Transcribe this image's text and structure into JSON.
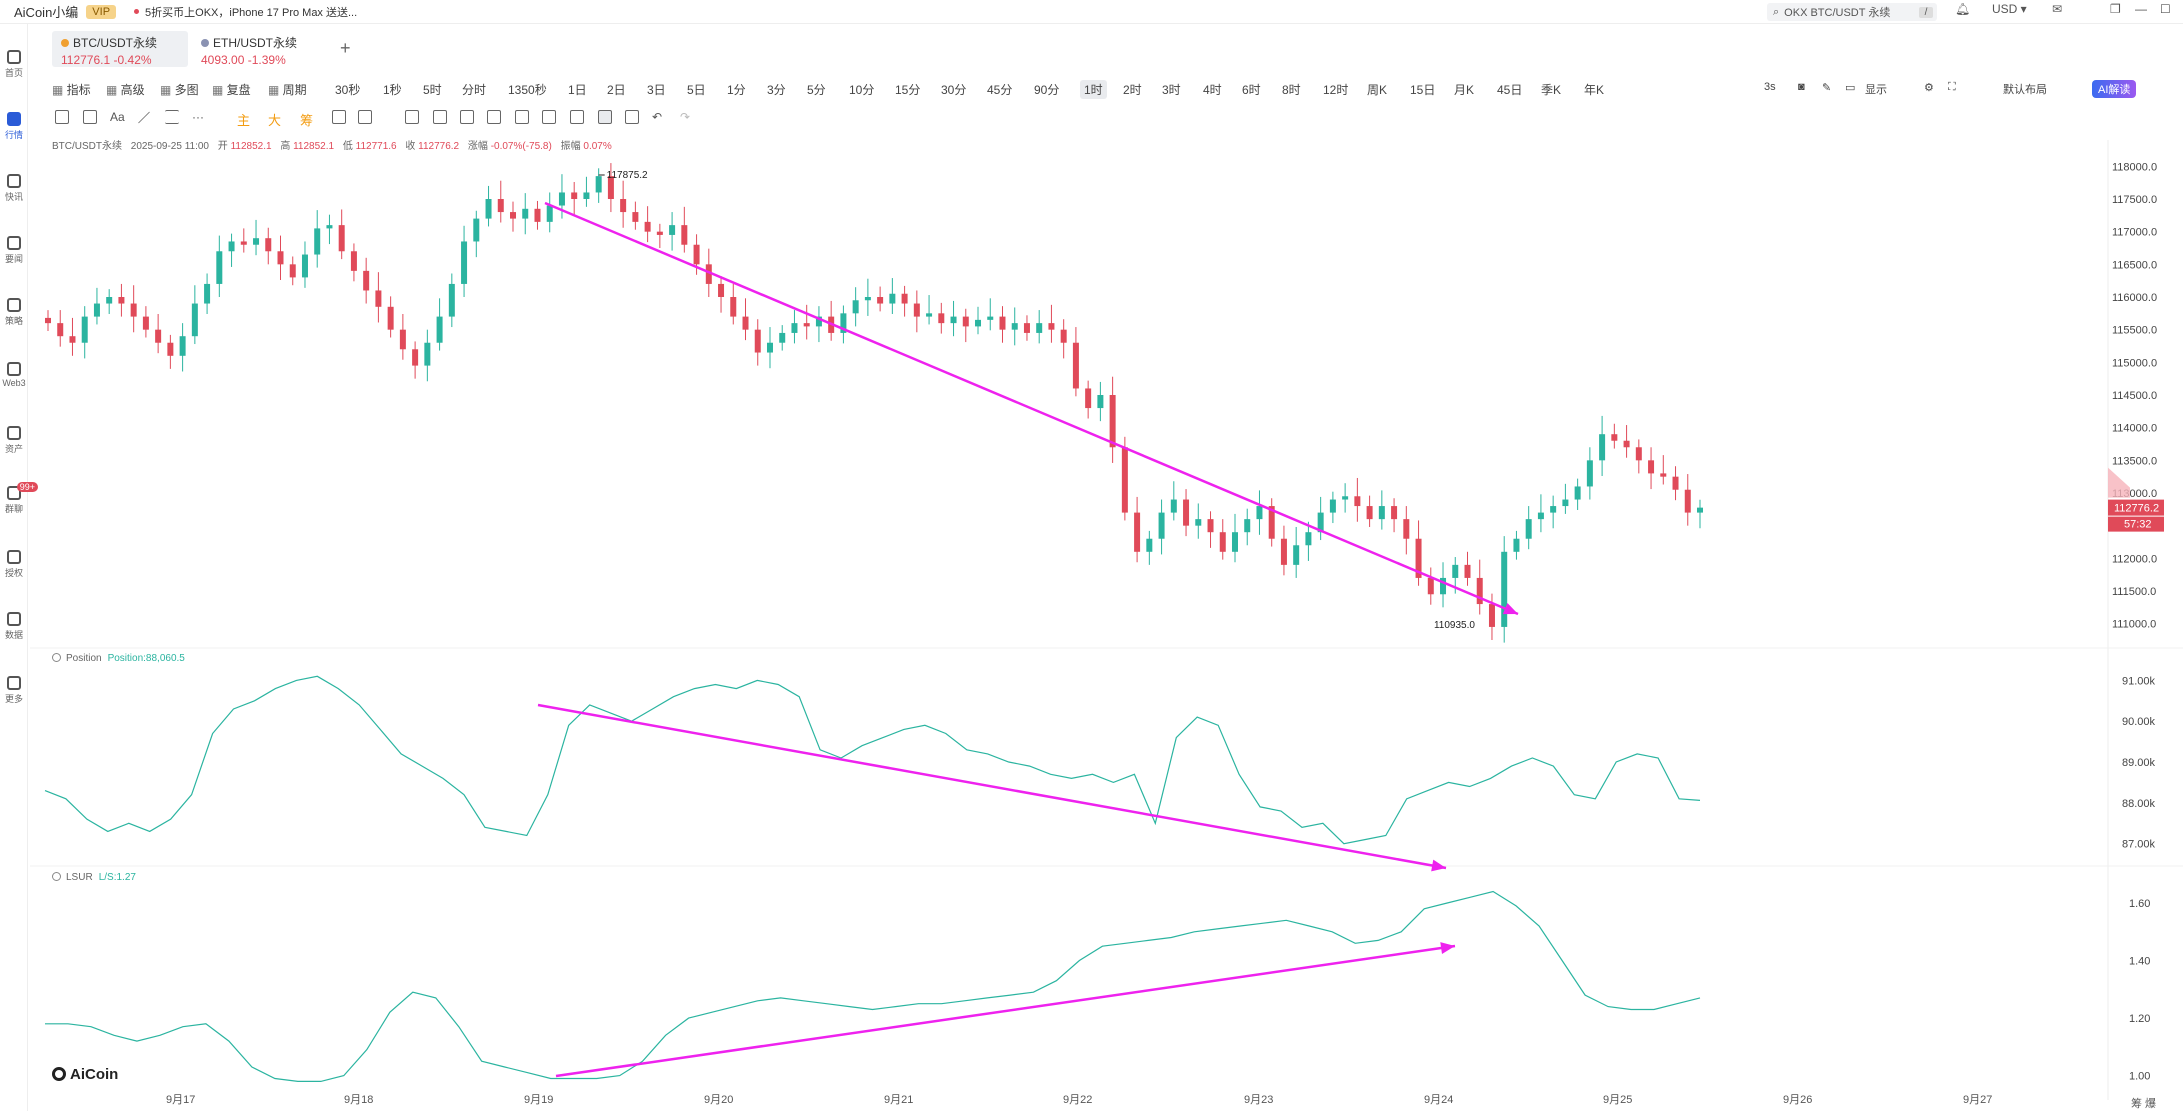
{
  "topbar": {
    "brand": "AiCoin小编",
    "vip": "VIP",
    "news": "5折买币上OKX，iPhone 17 Pro Max 送送...",
    "search_text": "OKX BTC/USDT 永续",
    "search_key": "/",
    "currency": "USD"
  },
  "sidebar": {
    "items": [
      {
        "label": "首页",
        "icon": "compass-icon"
      },
      {
        "label": "行情",
        "icon": "chart-bars-icon",
        "active": true
      },
      {
        "label": "快讯",
        "icon": "news-icon"
      },
      {
        "label": "要闻",
        "icon": "document-icon"
      },
      {
        "label": "策略",
        "icon": "robot-icon"
      },
      {
        "label": "Web3",
        "icon": "web3-icon"
      },
      {
        "label": "资产",
        "icon": "wallet-icon"
      },
      {
        "label": "群聊",
        "icon": "chat-icon",
        "badge": "99+"
      },
      {
        "label": "授权",
        "icon": "key-icon"
      },
      {
        "label": "数据",
        "icon": "monitor-icon"
      },
      {
        "label": "更多",
        "icon": "grid-icon"
      }
    ]
  },
  "tabs": [
    {
      "name": "BTC/USDT永续",
      "price": "112776.1",
      "change": "-0.42%",
      "active": true
    },
    {
      "name": "ETH/USDT永续",
      "price": "4093.00",
      "change": "-1.39%",
      "active": false
    }
  ],
  "toolbar": {
    "left": [
      "指标",
      "高级",
      "多图",
      "复盘",
      "周期"
    ],
    "intervals": [
      "30秒",
      "1秒",
      "5时",
      "分时",
      "1350秒",
      "1日",
      "2日",
      "3日",
      "5日",
      "1分",
      "3分",
      "5分",
      "10分",
      "15分",
      "30分",
      "45分",
      "90分",
      "1时",
      "2时",
      "3时",
      "4时",
      "6时",
      "8时",
      "12时",
      "周K",
      "15日",
      "月K",
      "45日",
      "季K",
      "年K"
    ],
    "active_interval": "1时",
    "right": [
      "3s",
      "显示",
      "默认布局"
    ],
    "ai_button": "AI解读"
  },
  "drawbar": {
    "text_tool": "Aa",
    "main": "主",
    "big": "大",
    "chip": "筹"
  },
  "infoline": {
    "symbol": "BTC/USDT永续",
    "datetime": "2025-09-25 11:00",
    "open_label": "开",
    "open": "112852.1",
    "high_label": "高",
    "high": "112852.1",
    "low_label": "低",
    "low": "112771.6",
    "close_label": "收",
    "close": "112776.2",
    "change_label": "涨幅",
    "change": "-0.07%(-75.8)",
    "amp_label": "振幅",
    "amp": "0.07%"
  },
  "panes": {
    "position": {
      "name": "Position",
      "value": "Position:88,060.5"
    },
    "lsur": {
      "name": "LSUR",
      "value": "L/S:1.27"
    }
  },
  "watermark": "AiCoin",
  "corner_label": "筹 爆",
  "chart_data": [
    {
      "type": "candlestick",
      "title": "BTC/USDT永续 1时",
      "y_ticks": [
        111000,
        111500,
        112000,
        112500,
        113000,
        113500,
        114000,
        114500,
        115000,
        115500,
        116000,
        116500,
        117000,
        117500,
        118000
      ],
      "ylim": [
        110750,
        118250
      ],
      "x_ticks": [
        "9月17",
        "9月18",
        "9月19",
        "9月20",
        "9月21",
        "9月22",
        "9月23",
        "9月24",
        "9月25",
        "9月26",
        "9月27"
      ],
      "annotations": {
        "high": "117875.2",
        "low": "110935.0",
        "last_price": "112776.2",
        "countdown": "57:32"
      },
      "close_series": [
        115600,
        115400,
        115300,
        115700,
        115900,
        116000,
        115900,
        115700,
        115500,
        115300,
        115100,
        115400,
        115900,
        116200,
        116700,
        116850,
        116800,
        116900,
        116700,
        116500,
        116300,
        116650,
        117050,
        117100,
        116700,
        116400,
        116100,
        115850,
        115500,
        115200,
        114950,
        115300,
        115700,
        116200,
        116850,
        117200,
        117500,
        117300,
        117200,
        117350,
        117150,
        117400,
        117600,
        117500,
        117600,
        117850,
        117500,
        117300,
        117150,
        117000,
        116950,
        117100,
        116800,
        116500,
        116200,
        116000,
        115700,
        115500,
        115150,
        115300,
        115450,
        115600,
        115550,
        115700,
        115450,
        115750,
        115950,
        116000,
        115900,
        116050,
        115900,
        115700,
        115750,
        115600,
        115700,
        115550,
        115650,
        115700,
        115500,
        115600,
        115450,
        115600,
        115500,
        115300,
        114600,
        114300,
        114500,
        113700,
        112700,
        112100,
        112300,
        112700,
        112900,
        112500,
        112600,
        112400,
        112100,
        112400,
        112600,
        112800,
        112300,
        111900,
        112200,
        112400,
        112700,
        112900,
        112950,
        112800,
        112600,
        112800,
        112600,
        112300,
        111700,
        111450,
        111700,
        111900,
        111700,
        111300,
        110950,
        112100,
        112300,
        112600,
        112700,
        112800,
        112900,
        113100,
        113500,
        113900,
        113800,
        113700,
        113500,
        113300,
        113250,
        113050,
        112700,
        112776
      ]
    },
    {
      "type": "line",
      "title": "Position",
      "y_ticks": [
        87000,
        88000,
        89000,
        90000,
        91000
      ],
      "ylim": [
        86600,
        91500
      ],
      "values": [
        88300,
        88100,
        87600,
        87300,
        87500,
        87300,
        87600,
        88200,
        89700,
        90300,
        90500,
        90800,
        91000,
        91100,
        90800,
        90400,
        89800,
        89200,
        88900,
        88600,
        88200,
        87400,
        87300,
        87200,
        88200,
        89900,
        90400,
        90200,
        90000,
        90300,
        90600,
        90800,
        90900,
        90800,
        91000,
        90900,
        90600,
        89300,
        89100,
        89400,
        89600,
        89800,
        89900,
        89700,
        89300,
        89200,
        89000,
        88900,
        88700,
        88600,
        88700,
        88500,
        88700,
        87500,
        89600,
        90100,
        89900,
        88700,
        87900,
        87800,
        87400,
        87500,
        87000,
        87100,
        87200,
        88100,
        88300,
        88500,
        88400,
        88600,
        88900,
        89100,
        88900,
        88200,
        88100,
        89000,
        89200,
        89100,
        88100,
        88060
      ]
    },
    {
      "type": "line",
      "title": "LSUR",
      "y_ticks": [
        1.0,
        1.2,
        1.4,
        1.6
      ],
      "ylim": [
        0.95,
        1.68
      ],
      "values": [
        1.18,
        1.18,
        1.17,
        1.14,
        1.12,
        1.14,
        1.17,
        1.18,
        1.12,
        1.03,
        0.99,
        0.98,
        0.98,
        1.0,
        1.09,
        1.22,
        1.29,
        1.27,
        1.17,
        1.05,
        1.03,
        1.01,
        0.99,
        0.99,
        0.99,
        1.0,
        1.05,
        1.14,
        1.2,
        1.22,
        1.24,
        1.26,
        1.27,
        1.26,
        1.25,
        1.24,
        1.23,
        1.24,
        1.25,
        1.25,
        1.26,
        1.27,
        1.28,
        1.29,
        1.33,
        1.4,
        1.45,
        1.46,
        1.47,
        1.48,
        1.5,
        1.51,
        1.52,
        1.53,
        1.54,
        1.52,
        1.5,
        1.46,
        1.47,
        1.5,
        1.58,
        1.6,
        1.62,
        1.64,
        1.59,
        1.52,
        1.4,
        1.28,
        1.24,
        1.23,
        1.23,
        1.25,
        1.27
      ]
    }
  ]
}
